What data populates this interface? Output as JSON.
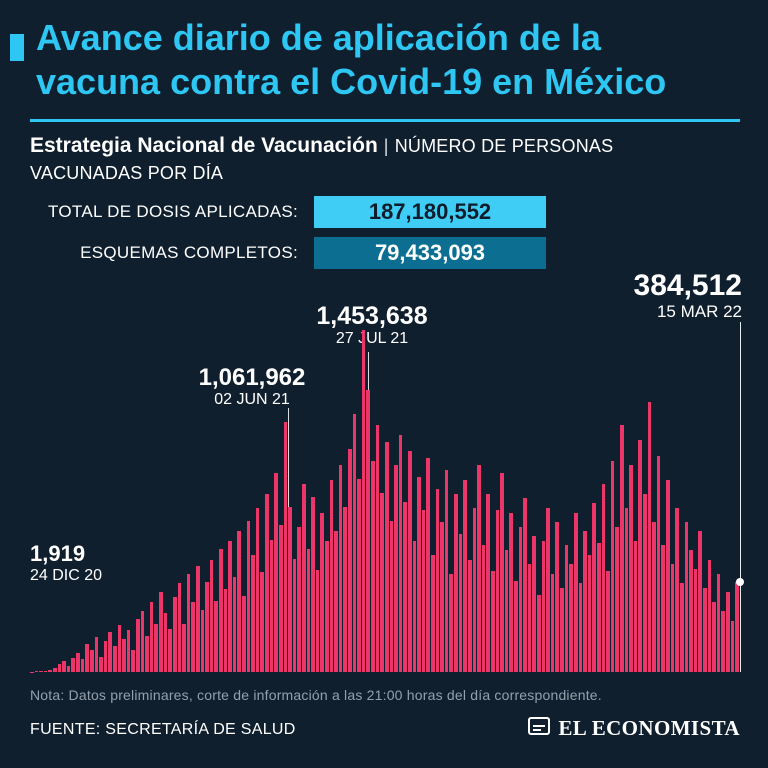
{
  "theme": {
    "background": "#101f2e",
    "accent": "#2ec6f2",
    "bar_color": "#ec3569",
    "badge_total_bg": "#3fcdf5",
    "badge_total_text": "#0e1c2b",
    "badge_complete_bg": "#0c6f92"
  },
  "header": {
    "title_line1": "Avance diario de aplicación de la",
    "title_line2": "vacuna contra el Covid-19 en México"
  },
  "subtitle": {
    "bold": "Estrategia Nacional de Vacunación",
    "separator": "|",
    "regular": "NÚMERO DE PERSONAS VACUNADAS POR DÍA"
  },
  "stats": [
    {
      "label": "TOTAL DE DOSIS APLICADAS:",
      "value": "187,180,552"
    },
    {
      "label": "ESQUEMAS COMPLETOS:",
      "value": "79,433,093"
    }
  ],
  "footer": {
    "note": "Nota: Datos preliminares, corte de información a las 21:00 horas del día correspondiente.",
    "source": "FUENTE: SECRETARÍA DE SALUD",
    "brand": "EL ECONOMISTA"
  },
  "chart_data": {
    "type": "bar",
    "title": "Avance diario de aplicación de la vacuna contra el Covid-19 en México",
    "ylabel": "Número de personas vacunadas por día",
    "xlabel": "",
    "x_start_label": "24 DIC 20",
    "x_end_label": "15 MAR 22",
    "ylim": [
      0,
      1453638
    ],
    "grid": false,
    "legend": false,
    "annotations": [
      {
        "label": "1,919",
        "date": "24 DIC 20",
        "value": 1919
      },
      {
        "label": "1,061,962",
        "date": "02 JUN 21",
        "value": 1061962
      },
      {
        "label": "1,453,638",
        "date": "27 JUL 21",
        "value": 1453638
      },
      {
        "label": "384,512",
        "date": "15 MAR 22",
        "value": 384512
      }
    ],
    "values": [
      1919,
      2500,
      4800,
      3200,
      9000,
      16000,
      32000,
      45000,
      26000,
      61000,
      82000,
      56000,
      118000,
      92000,
      148000,
      64000,
      132000,
      168000,
      112000,
      198000,
      142000,
      178000,
      94000,
      224000,
      258000,
      152000,
      298000,
      204000,
      338000,
      252000,
      184000,
      318000,
      378000,
      204000,
      416000,
      298000,
      452000,
      262000,
      384000,
      476000,
      302000,
      522000,
      354000,
      558000,
      402000,
      598000,
      324000,
      642000,
      498000,
      698000,
      424000,
      758000,
      562000,
      848000,
      624000,
      1061962,
      702000,
      482000,
      618000,
      798000,
      522000,
      742000,
      432000,
      678000,
      558000,
      818000,
      598000,
      878000,
      702000,
      948000,
      1098000,
      822000,
      1453638,
      1198000,
      898000,
      1048000,
      762000,
      978000,
      642000,
      878000,
      1008000,
      722000,
      938000,
      558000,
      828000,
      688000,
      908000,
      498000,
      778000,
      638000,
      858000,
      418000,
      758000,
      588000,
      818000,
      478000,
      698000,
      878000,
      538000,
      758000,
      428000,
      688000,
      848000,
      518000,
      678000,
      388000,
      618000,
      738000,
      458000,
      578000,
      328000,
      558000,
      698000,
      418000,
      638000,
      358000,
      538000,
      458000,
      678000,
      378000,
      598000,
      498000,
      718000,
      548000,
      798000,
      428000,
      898000,
      618000,
      1048000,
      698000,
      878000,
      558000,
      988000,
      758000,
      1148000,
      638000,
      918000,
      538000,
      818000,
      458000,
      698000,
      378000,
      638000,
      518000,
      438000,
      598000,
      358000,
      478000,
      298000,
      418000,
      258000,
      338000,
      218000,
      384512
    ]
  }
}
